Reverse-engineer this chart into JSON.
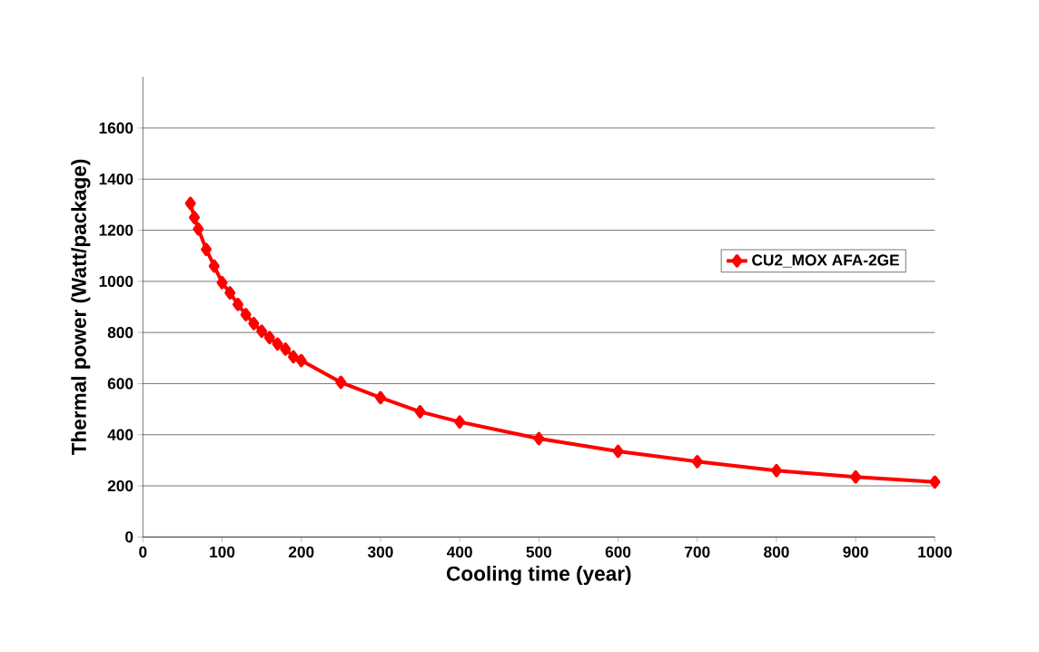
{
  "chart_data": {
    "type": "line",
    "xlabel": "Cooling time (year)",
    "ylabel": "Thermal power (Watt/package)",
    "x": [
      60,
      65,
      70,
      80,
      90,
      100,
      110,
      120,
      130,
      140,
      150,
      160,
      170,
      180,
      190,
      200,
      250,
      300,
      350,
      400,
      500,
      600,
      700,
      800,
      900,
      1000
    ],
    "series": [
      {
        "name": "CU2_MOX AFA-2GE",
        "color": "#ff0000",
        "values": [
          1305,
          1250,
          1205,
          1125,
          1060,
          995,
          955,
          910,
          870,
          835,
          805,
          780,
          755,
          735,
          705,
          690,
          605,
          545,
          490,
          450,
          385,
          335,
          295,
          260,
          235,
          215
        ]
      }
    ],
    "xlim": [
      0,
      1000
    ],
    "xticks": [
      0,
      100,
      200,
      300,
      400,
      500,
      600,
      700,
      800,
      900,
      1000
    ],
    "ylim": [
      0,
      1800
    ],
    "yticks": [
      0,
      200,
      400,
      600,
      800,
      1000,
      1200,
      1400,
      1600
    ],
    "grid": "y",
    "legend": "right",
    "marker": "diamond",
    "line_style": "solid"
  }
}
